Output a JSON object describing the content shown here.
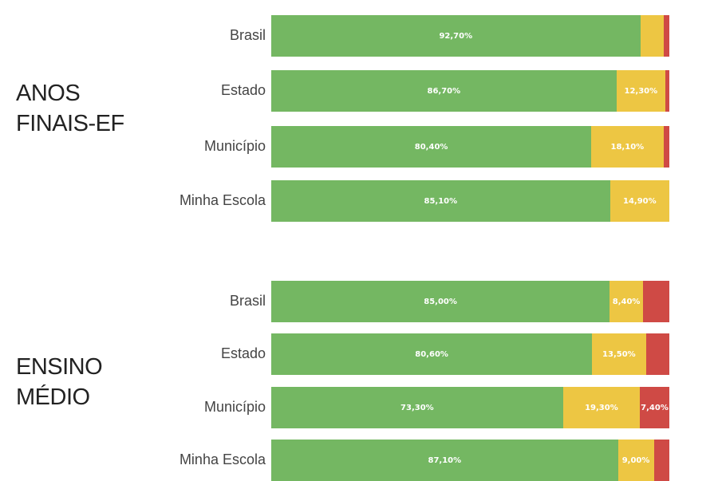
{
  "colors": {
    "ok": "#74b762",
    "warn": "#edc643",
    "bad": "#cf4a45"
  },
  "chart_data": [
    {
      "type": "bar",
      "orientation": "horizontal",
      "stacked": true,
      "title": "ANOS\nFINAIS-EF",
      "categories": [
        "Brasil",
        "Estado",
        "Município",
        "Minha Escola"
      ],
      "series": [
        {
          "values": [
            92.7,
            86.7,
            80.4,
            85.1
          ],
          "labels": [
            "92,70%",
            "86,70%",
            "80,40%",
            "85,10%"
          ]
        },
        {
          "values": [
            5.9,
            12.3,
            18.1,
            14.9
          ],
          "labels": [
            "",
            "12,30%",
            "18,10%",
            "14,90%"
          ]
        },
        {
          "values": [
            1.4,
            1.0,
            1.5,
            0.0
          ],
          "labels": [
            "",
            "",
            "",
            ""
          ]
        }
      ],
      "xlim": [
        0,
        100
      ]
    },
    {
      "type": "bar",
      "orientation": "horizontal",
      "stacked": true,
      "title": "ENSINO\nMÉDIO",
      "categories": [
        "Brasil",
        "Estado",
        "Município",
        "Minha Escola"
      ],
      "series": [
        {
          "values": [
            85.0,
            80.6,
            73.3,
            87.1
          ],
          "labels": [
            "85,00%",
            "80,60%",
            "73,30%",
            "87,10%"
          ]
        },
        {
          "values": [
            8.4,
            13.5,
            19.3,
            9.0
          ],
          "labels": [
            "8,40%",
            "13,50%",
            "19,30%",
            "9,00%"
          ]
        },
        {
          "values": [
            6.6,
            5.9,
            7.4,
            3.9
          ],
          "labels": [
            "",
            "",
            "7,40%",
            ""
          ]
        }
      ],
      "xlim": [
        0,
        100
      ]
    }
  ]
}
